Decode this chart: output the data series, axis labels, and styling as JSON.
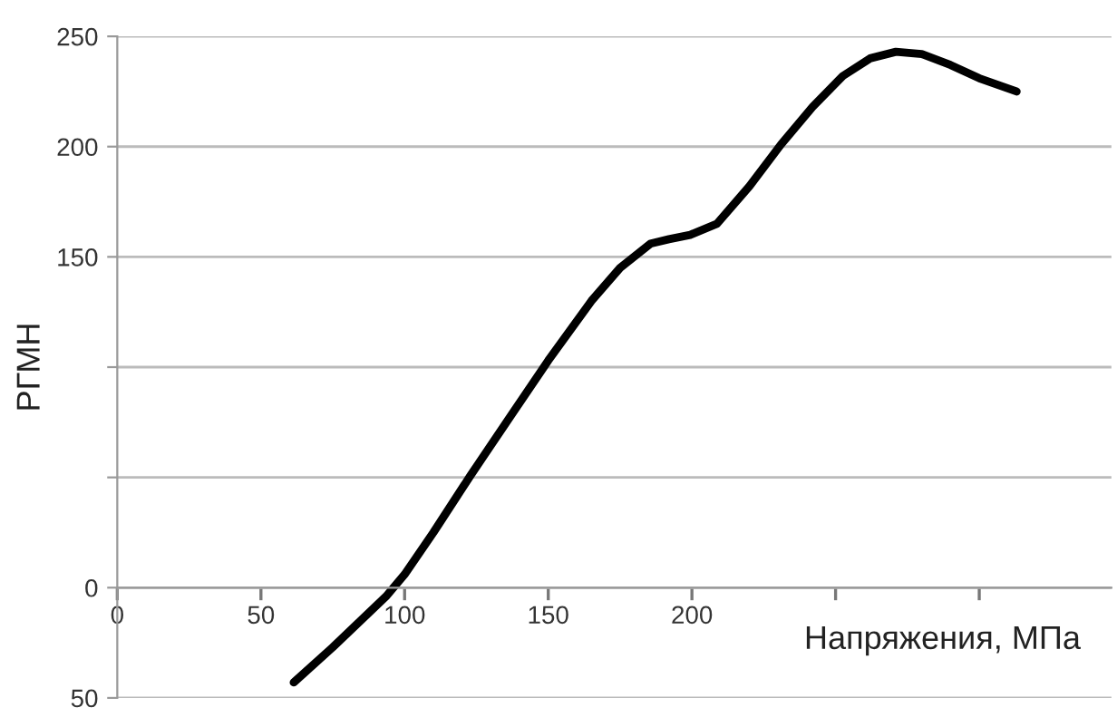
{
  "chart_data": {
    "type": "line",
    "xlabel": "Напряжения, МПа",
    "ylabel": "РГМН",
    "x": [
      61.4,
      75,
      93.5,
      100,
      110,
      123,
      137,
      150,
      165,
      175,
      185.6,
      192,
      199.4,
      208.7,
      220,
      231,
      242,
      252.5,
      262,
      271,
      280,
      290,
      300,
      313
    ],
    "series": [
      {
        "color": "#000000",
        "values": [
          -43,
          -27,
          -4,
          6,
          25,
          51,
          78,
          103,
          130,
          145,
          156,
          158,
          160,
          165,
          182,
          201,
          218,
          232,
          240,
          243,
          242,
          237,
          231,
          225
        ]
      }
    ],
    "xlim": [
      0,
      346
    ],
    "xticks": [
      0,
      50,
      100,
      150,
      200,
      {
        "value": 250,
        "label": null
      },
      {
        "value": 300,
        "label": null
      }
    ],
    "ylim": [
      -50,
      250
    ],
    "yticks": [
      {
        "value": -50,
        "label": "50"
      },
      0,
      {
        "value": 50,
        "label": null
      },
      {
        "value": 100,
        "label": null
      },
      150,
      200,
      250
    ],
    "grid": "y",
    "marker": "none",
    "line_style": "solid"
  }
}
